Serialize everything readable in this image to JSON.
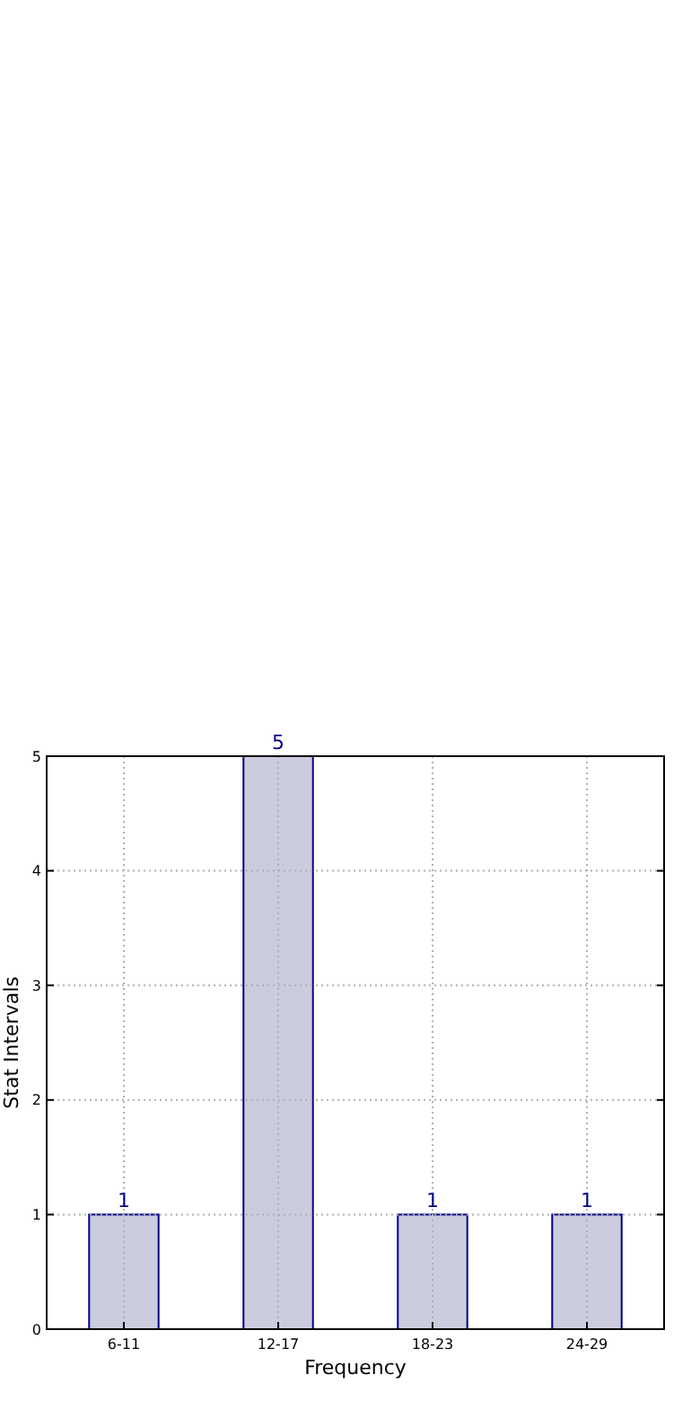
{
  "chart_data": {
    "type": "bar",
    "xlabel": "Frequency",
    "ylabel": "Stat Intervals",
    "categories": [
      "6-11",
      "12-17",
      "18-23",
      "24-29"
    ],
    "values": [
      1,
      5,
      1,
      1
    ],
    "color": "#ccccdf",
    "ylim": [
      0,
      5
    ],
    "yticks": [
      0,
      1,
      2,
      3,
      4,
      5
    ],
    "grid": true,
    "data_labels": true
  }
}
